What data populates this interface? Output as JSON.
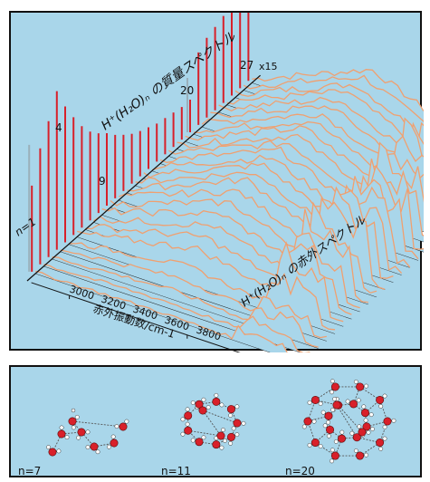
{
  "figure": {
    "mass_spectrum_title": "H⁺(H₂O)ₙ の質量スペクトル",
    "ir_spectrum_title": "H⁺(H₂O)ₙ の赤外スペクトル",
    "n_labels": [
      {
        "text": "n=1",
        "n": 1
      },
      {
        "text": "4",
        "n": 4
      },
      {
        "text": "9",
        "n": 9
      },
      {
        "text": "20",
        "n": 20
      },
      {
        "text": "27",
        "n": 27
      }
    ],
    "scale_label": "x15",
    "x_axis": {
      "title": "赤外振動数/cm-1",
      "ticks": [
        "3000",
        "3200",
        "3400",
        "3600",
        "3800"
      ]
    }
  },
  "structures": [
    {
      "label": "n=7",
      "n": 7
    },
    {
      "label": "n=11",
      "n": 11
    },
    {
      "label": "n=20",
      "n": 20
    }
  ],
  "colors": {
    "background": "#a9d6ea",
    "mass_peak": "#d8202a",
    "ir_trace": "#f0a070",
    "axis": "#111111",
    "oxygen": "#d8202a",
    "hydrogen": "#ffffff"
  }
}
